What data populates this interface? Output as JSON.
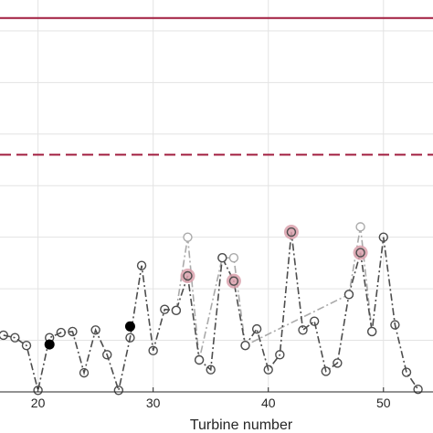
{
  "chart_data": {
    "type": "line",
    "xlabel": "Turbine number",
    "xlim": [
      16.7,
      54.3
    ],
    "ylim": [
      0,
      7.6
    ],
    "x_ticks": [
      "20",
      "30",
      "40",
      "50"
    ],
    "x_tick_values": [
      20,
      30,
      40,
      50
    ],
    "y_gridlines": [
      1,
      2,
      3,
      4,
      5,
      6,
      7
    ],
    "grid": true,
    "reference_lines": [
      {
        "style": "solid",
        "value": 7.25,
        "color": "#a11d3f"
      },
      {
        "style": "dashed",
        "value": 4.6,
        "color": "#a11d3f"
      }
    ],
    "series": [
      {
        "style": "dash-dot, open circle markers",
        "color": "#4d4d4d",
        "x": [
          17,
          18,
          19,
          20,
          21,
          22,
          23,
          24,
          25,
          26,
          27,
          28,
          29,
          30,
          31,
          32,
          33,
          34,
          35,
          36,
          37,
          38,
          39,
          40,
          41,
          42,
          43,
          44,
          45,
          46,
          47,
          48,
          49,
          50,
          51,
          52,
          53
        ],
        "y": [
          1.1,
          1.05,
          0.9,
          0.03,
          1.05,
          1.15,
          1.17,
          0.37,
          1.2,
          0.72,
          0.03,
          1.05,
          2.45,
          0.8,
          1.6,
          1.58,
          2.25,
          0.62,
          0.43,
          2.6,
          2.15,
          0.9,
          1.22,
          0.43,
          0.72,
          3.1,
          1.2,
          1.37,
          0.4,
          0.56,
          1.89,
          2.7,
          1.17,
          3.0,
          1.3,
          0.38,
          0.05
        ]
      },
      {
        "style": "dash-dot, light circle markers",
        "color": "#aaaaaa",
        "x": [
          32,
          33,
          34,
          36,
          37,
          38,
          47,
          48,
          49
        ],
        "y": [
          1.58,
          3.0,
          0.62,
          2.6,
          2.6,
          0.9,
          1.89,
          3.2,
          1.17
        ]
      }
    ],
    "highlight_filled": {
      "x": [
        21,
        28
      ],
      "y": [
        0.92,
        1.27
      ],
      "color": "#000000"
    },
    "highlight_ring": {
      "x": [
        33,
        37,
        42,
        48
      ],
      "y": [
        2.25,
        2.15,
        3.1,
        2.7
      ],
      "color": "#d9a0ab"
    }
  }
}
